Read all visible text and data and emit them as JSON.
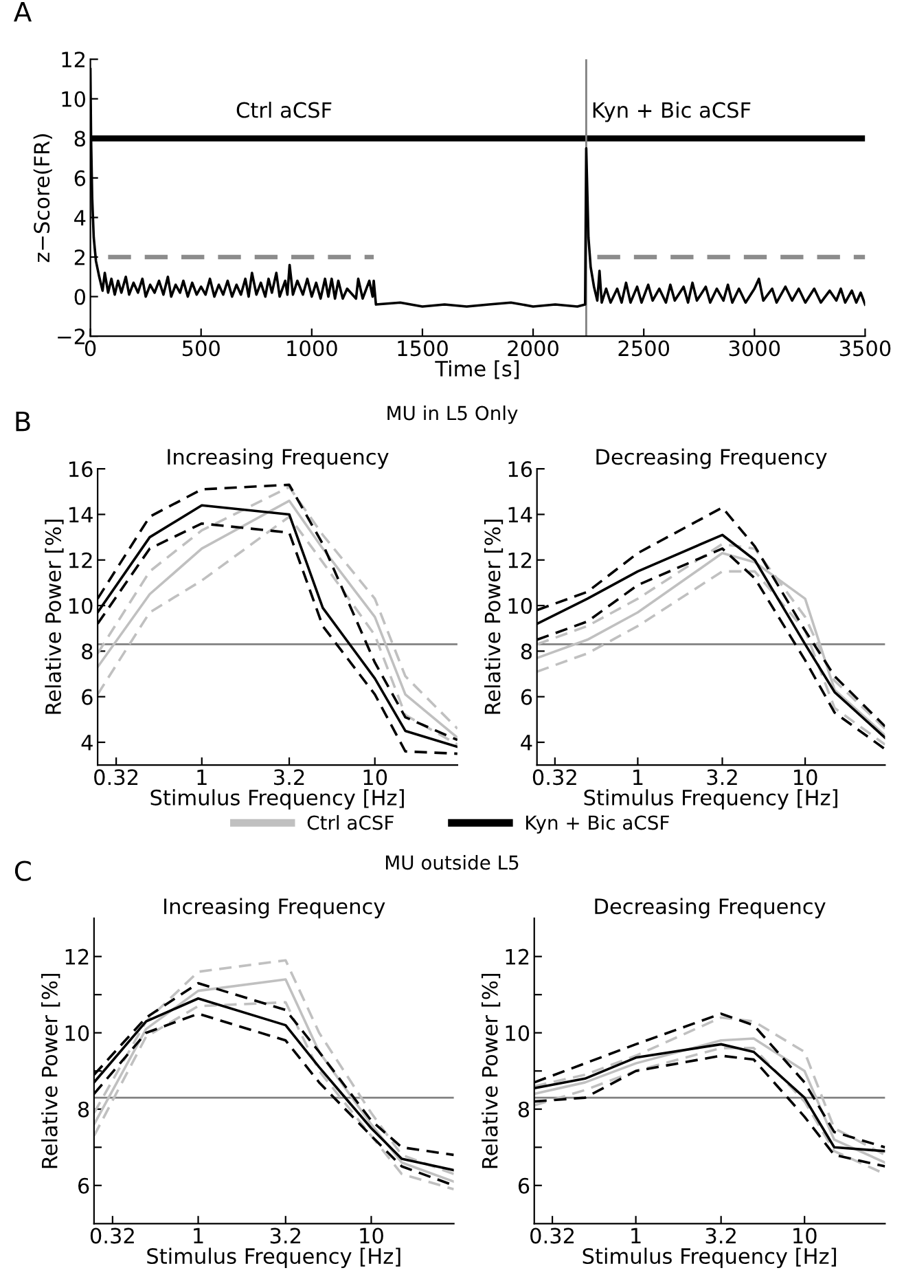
{
  "chart_data": [
    {
      "type": "line",
      "xlabel": "Time [s]",
      "ylabel": "z−Score(FR)",
      "xlim": [
        0,
        3500
      ],
      "xticks": [
        0,
        500,
        1000,
        1500,
        2000,
        2500,
        3000,
        3500
      ],
      "ylim": [
        -2,
        12
      ],
      "yticks": [
        {
          "value": -2,
          "label": "−2"
        },
        0,
        2,
        4,
        6,
        8,
        10,
        12
      ],
      "annotations": [
        "A",
        "Ctrl aCSF",
        "Kyn + Bic aCSF"
      ],
      "bands": [
        {
          "axis": "y",
          "from": 7.85,
          "to": 8.15,
          "color": "#000000"
        }
      ],
      "ref_lines": [
        {
          "axis": "x",
          "value": 2240,
          "color": "#808080"
        }
      ],
      "series": [
        {
          "color": "#000000",
          "line_style": "solid",
          "x": [
            0,
            3,
            8,
            15,
            25,
            40,
            55,
            65,
            80,
            95,
            110,
            125,
            140,
            160,
            175,
            195,
            215,
            235,
            250,
            270,
            290,
            310,
            330,
            350,
            365,
            385,
            405,
            420,
            440,
            460,
            480,
            500,
            520,
            540,
            560,
            580,
            600,
            620,
            640,
            660,
            680,
            700,
            715,
            730,
            750,
            770,
            790,
            805,
            820,
            840,
            855,
            880,
            890,
            900,
            915,
            935,
            960,
            980,
            1000,
            1020,
            1040,
            1060,
            1075,
            1090,
            1105,
            1120,
            1140,
            1160,
            1200,
            1210,
            1230,
            1260,
            1275,
            1280,
            1290,
            1400,
            1500,
            1600,
            1700,
            1800,
            1900,
            2000,
            2100,
            2200,
            2235,
            2240,
            2250,
            2260,
            2275,
            2290,
            2300,
            2310,
            2330,
            2350,
            2380,
            2400,
            2420,
            2440,
            2470,
            2490,
            2520,
            2540,
            2570,
            2600,
            2620,
            2640,
            2680,
            2700,
            2720,
            2740,
            2780,
            2800,
            2830,
            2860,
            2880,
            2900,
            2930,
            2960,
            3000,
            3020,
            3040,
            3080,
            3100,
            3140,
            3170,
            3200,
            3230,
            3270,
            3300,
            3340,
            3370,
            3390,
            3410,
            3440,
            3460,
            3480,
            3500
          ],
          "values": [
            11.5,
            8,
            5,
            3,
            1.8,
            1.0,
            0.3,
            1.2,
            0.2,
            0.9,
            0.1,
            0.8,
            0.2,
            1.0,
            0.1,
            0.7,
            0.2,
            0.9,
            0.0,
            0.6,
            0.2,
            0.8,
            0.1,
            1.0,
            0.0,
            0.6,
            0.2,
            0.8,
            0.0,
            0.7,
            0.1,
            0.5,
            0.1,
            0.9,
            0.0,
            0.6,
            0.1,
            0.8,
            0.0,
            0.6,
            0.1,
            0.9,
            0.0,
            1.2,
            0.1,
            0.7,
            0.0,
            0.9,
            0.2,
            1.2,
            0.0,
            0.8,
            0.1,
            1.6,
            0.1,
            0.8,
            0.1,
            0.9,
            0.0,
            0.7,
            -0.1,
            0.9,
            0.0,
            0.9,
            -0.1,
            0.8,
            -0.1,
            0.4,
            -0.1,
            0.9,
            -0.1,
            0.8,
            0.0,
            0.8,
            -0.4,
            -0.3,
            -0.5,
            -0.4,
            -0.5,
            -0.4,
            -0.3,
            -0.5,
            -0.4,
            -0.5,
            -0.4,
            7.5,
            3,
            1.5,
            0.5,
            -0.2,
            1.3,
            -0.3,
            0.4,
            -0.3,
            0.4,
            -0.3,
            0.7,
            -0.3,
            0.5,
            -0.3,
            0.6,
            -0.2,
            0.4,
            -0.3,
            0.6,
            -0.2,
            0.5,
            -0.3,
            0.7,
            -0.2,
            0.5,
            -0.3,
            0.4,
            -0.2,
            0.6,
            -0.3,
            0.4,
            -0.3,
            0.4,
            0.9,
            -0.2,
            0.4,
            -0.3,
            0.5,
            -0.2,
            0.4,
            -0.3,
            0.4,
            -0.3,
            0.3,
            -0.2,
            0.4,
            -0.3,
            0.3,
            -0.3,
            0.2,
            -0.4
          ]
        },
        {
          "color": "#8c8c8c",
          "line_style": "dashed",
          "x": [
            80,
            1280
          ],
          "values": [
            2,
            2
          ]
        },
        {
          "color": "#8c8c8c",
          "line_style": "dashed",
          "x": [
            2290,
            3500
          ],
          "values": [
            2,
            2
          ]
        }
      ]
    },
    {
      "type": "line",
      "title": "Increasing Frequency",
      "subtitle": "MU in L5 Only",
      "xlabel": "Stimulus Frequency [Hz]",
      "ylabel": "Relative Power [%]",
      "log": "x",
      "xlim": [
        0.25,
        30
      ],
      "xticks": [
        0.32,
        1,
        3.2,
        10
      ],
      "ylim": [
        3,
        16
      ],
      "yticks": [
        4,
        6,
        8,
        10,
        12,
        14,
        16
      ],
      "legend": "bottom",
      "annotations": [
        "B"
      ],
      "ref_lines": [
        {
          "axis": "y",
          "value": 8.3,
          "color": "#808080"
        }
      ],
      "x": [
        0.25,
        0.5,
        1,
        3.2,
        5,
        10,
        15,
        30
      ],
      "series": [
        {
          "name": "Ctrl aCSF",
          "color": "#c0c0c0",
          "line_style": "solid",
          "values": [
            7.3,
            10.5,
            12.5,
            14.6,
            12.5,
            9.5,
            6.1,
            4.2
          ]
        },
        {
          "color": "#c0c0c0",
          "line_style": "dashed",
          "values": [
            7.9,
            11.5,
            13.3,
            15.2,
            13.1,
            10.3,
            6.9,
            4.6
          ]
        },
        {
          "color": "#c0c0c0",
          "line_style": "dashed",
          "values": [
            6.1,
            9.7,
            11.1,
            13.9,
            11.9,
            8.7,
            5.2,
            3.9
          ]
        },
        {
          "name": "Kyn + Bic aCSF",
          "color": "#000000",
          "line_style": "solid",
          "values": [
            9.7,
            13.0,
            14.4,
            14.0,
            9.9,
            6.8,
            4.5,
            3.8
          ]
        },
        {
          "color": "#000000",
          "line_style": "dashed",
          "values": [
            10.3,
            13.9,
            15.1,
            15.3,
            12.7,
            7.5,
            5.1,
            4.1
          ]
        },
        {
          "color": "#000000",
          "line_style": "dashed",
          "values": [
            9.2,
            12.5,
            13.6,
            13.2,
            9.1,
            6.1,
            3.6,
            3.5
          ]
        }
      ]
    },
    {
      "type": "line",
      "title": "Decreasing Frequency",
      "xlabel": "Stimulus Frequency [Hz]",
      "ylabel": "Relative Power [%]",
      "log": "x",
      "xlim": [
        0.25,
        30
      ],
      "xticks": [
        0.32,
        1,
        3.2,
        10
      ],
      "ylim": [
        3,
        16
      ],
      "yticks": [
        4,
        6,
        8,
        10,
        12,
        14,
        16
      ],
      "ref_lines": [
        {
          "axis": "y",
          "value": 8.3,
          "color": "#808080"
        }
      ],
      "x": [
        0.25,
        0.5,
        1,
        3.2,
        5,
        10,
        15,
        30
      ],
      "series": [
        {
          "color": "#c0c0c0",
          "line_style": "solid",
          "values": [
            7.7,
            8.5,
            9.7,
            12.3,
            11.9,
            10.3,
            6.3,
            4.3
          ]
        },
        {
          "color": "#c0c0c0",
          "line_style": "dashed",
          "values": [
            8.3,
            9.1,
            10.3,
            12.7,
            12.5,
            9.5,
            6.7,
            4.6
          ]
        },
        {
          "color": "#c0c0c0",
          "line_style": "dashed",
          "values": [
            7.1,
            7.9,
            9.1,
            11.5,
            11.5,
            8.9,
            5.5,
            3.9
          ]
        },
        {
          "color": "#000000",
          "line_style": "solid",
          "values": [
            9.2,
            10.3,
            11.5,
            13.1,
            12.0,
            8.3,
            6.2,
            4.2
          ]
        },
        {
          "color": "#000000",
          "line_style": "dashed",
          "values": [
            9.8,
            10.6,
            12.3,
            14.3,
            12.6,
            8.9,
            6.9,
            4.7
          ]
        },
        {
          "color": "#000000",
          "line_style": "dashed",
          "values": [
            8.5,
            9.3,
            10.9,
            12.5,
            11.2,
            7.6,
            5.3,
            3.7
          ]
        }
      ]
    },
    {
      "type": "line",
      "title": "Increasing Frequency",
      "subtitle": "MU outside L5",
      "xlabel": "Stimulus Frequency [Hz]",
      "ylabel": "Relative Power [%]",
      "log": "x",
      "xlim": [
        0.25,
        30
      ],
      "xticks": [
        0.32,
        1,
        3.2,
        10
      ],
      "ylim": [
        5,
        13
      ],
      "yticks": [
        6,
        {
          "value": 7,
          "label": null
        },
        8,
        {
          "value": 9,
          "label": null
        },
        10,
        {
          "value": 11,
          "label": null
        },
        12
      ],
      "annotations": [
        "C"
      ],
      "ref_lines": [
        {
          "axis": "y",
          "value": 8.3,
          "color": "#808080"
        }
      ],
      "x": [
        0.25,
        0.5,
        1,
        3.2,
        5,
        10,
        15,
        30
      ],
      "series": [
        {
          "color": "#c0c0c0",
          "line_style": "solid",
          "values": [
            7.6,
            10.1,
            11.1,
            11.4,
            9.5,
            7.6,
            6.6,
            6.1
          ]
        },
        {
          "color": "#c0c0c0",
          "line_style": "dashed",
          "values": [
            7.9,
            10.3,
            11.6,
            11.9,
            10.0,
            7.9,
            6.8,
            6.3
          ]
        },
        {
          "color": "#c0c0c0",
          "line_style": "dashed",
          "values": [
            7.3,
            9.9,
            10.7,
            10.8,
            9.0,
            7.3,
            6.3,
            5.9
          ]
        },
        {
          "color": "#000000",
          "line_style": "solid",
          "values": [
            8.7,
            10.3,
            10.9,
            10.2,
            9.1,
            7.5,
            6.7,
            6.4
          ]
        },
        {
          "color": "#000000",
          "line_style": "dashed",
          "values": [
            8.9,
            10.4,
            11.3,
            10.6,
            9.5,
            7.7,
            7.0,
            6.8
          ]
        },
        {
          "color": "#000000",
          "line_style": "dashed",
          "values": [
            8.4,
            10.0,
            10.5,
            9.8,
            8.7,
            7.3,
            6.5,
            6.0
          ]
        }
      ]
    },
    {
      "type": "line",
      "title": "Decreasing Frequency",
      "xlabel": "Stimulus Frequency [Hz]",
      "ylabel": "Relative Power [%]",
      "log": "x",
      "xlim": [
        0.25,
        30
      ],
      "xticks": [
        0.32,
        1,
        3.2,
        10
      ],
      "ylim": [
        5,
        13
      ],
      "yticks": [
        6,
        {
          "value": 7,
          "label": null
        },
        8,
        {
          "value": 9,
          "label": null
        },
        10,
        {
          "value": 11,
          "label": null
        },
        12
      ],
      "ref_lines": [
        {
          "axis": "y",
          "value": 8.3,
          "color": "#808080"
        }
      ],
      "x": [
        0.25,
        0.5,
        1,
        3.2,
        5,
        10,
        15,
        30
      ],
      "series": [
        {
          "color": "#c0c0c0",
          "line_style": "solid",
          "values": [
            8.4,
            8.7,
            9.2,
            9.8,
            9.85,
            9.0,
            7.2,
            6.6
          ]
        },
        {
          "color": "#c0c0c0",
          "line_style": "dashed",
          "values": [
            8.6,
            8.9,
            9.4,
            10.4,
            10.3,
            9.5,
            7.5,
            6.8
          ]
        },
        {
          "color": "#c0c0c0",
          "line_style": "dashed",
          "values": [
            8.1,
            8.5,
            9.0,
            9.6,
            9.6,
            8.2,
            6.9,
            6.3
          ]
        },
        {
          "color": "#000000",
          "line_style": "solid",
          "values": [
            8.55,
            8.8,
            9.35,
            9.7,
            9.5,
            8.3,
            7.0,
            6.9
          ]
        },
        {
          "color": "#000000",
          "line_style": "dashed",
          "values": [
            8.7,
            9.2,
            9.7,
            10.5,
            10.2,
            8.7,
            7.4,
            7.0
          ]
        },
        {
          "color": "#000000",
          "line_style": "dashed",
          "values": [
            8.2,
            8.3,
            9.0,
            9.4,
            9.3,
            7.8,
            6.8,
            6.5
          ]
        }
      ]
    }
  ]
}
